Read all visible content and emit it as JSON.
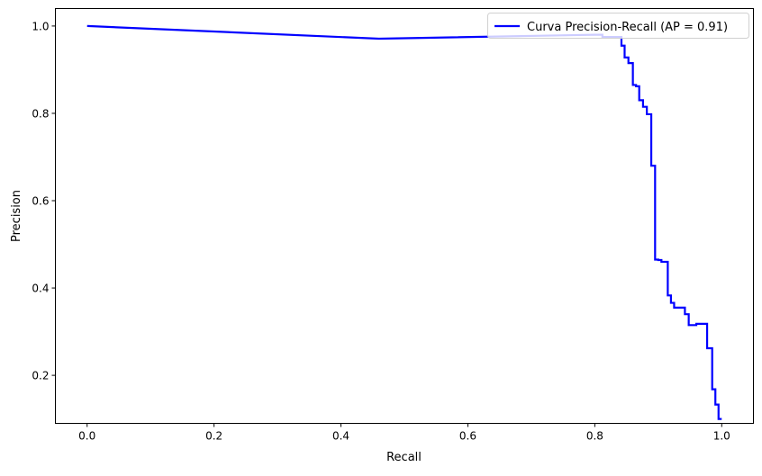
{
  "chart_data": {
    "type": "line",
    "title": "",
    "xlabel": "Recall",
    "ylabel": "Precision",
    "xlim": [
      -0.05,
      1.05
    ],
    "ylim": [
      0.09,
      1.04
    ],
    "xticks": [
      0.0,
      0.2,
      0.4,
      0.6,
      0.8,
      1.0
    ],
    "xtick_labels": [
      "0.0",
      "0.2",
      "0.4",
      "0.6",
      "0.8",
      "1.0"
    ],
    "yticks": [
      0.2,
      0.4,
      0.6,
      0.8,
      1.0
    ],
    "ytick_labels": [
      "0.2",
      "0.4",
      "0.6",
      "0.8",
      "1.0"
    ],
    "grid": false,
    "legend_position": "upper-right",
    "series": [
      {
        "name": "Curva Precision-Recall (AP = 0.91)",
        "color": "#0000ff",
        "x": [
          0.0,
          0.46,
          0.8,
          0.812,
          0.812,
          0.842,
          0.842,
          0.847,
          0.847,
          0.853,
          0.853,
          0.86,
          0.86,
          0.865,
          0.865,
          0.87,
          0.87,
          0.876,
          0.876,
          0.882,
          0.882,
          0.889,
          0.889,
          0.895,
          0.895,
          0.9,
          0.9,
          0.905,
          0.905,
          0.915,
          0.915,
          0.92,
          0.92,
          0.925,
          0.925,
          0.942,
          0.942,
          0.948,
          0.948,
          0.96,
          0.96,
          0.977,
          0.977,
          0.985,
          0.985,
          0.99,
          0.99,
          0.995,
          0.995,
          1.0,
          1.0
        ],
        "y": [
          1.0,
          0.971,
          0.98,
          0.98,
          0.975,
          0.975,
          0.955,
          0.955,
          0.928,
          0.928,
          0.915,
          0.915,
          0.865,
          0.865,
          0.862,
          0.862,
          0.83,
          0.83,
          0.815,
          0.815,
          0.798,
          0.798,
          0.68,
          0.68,
          0.465,
          0.465,
          0.464,
          0.464,
          0.46,
          0.46,
          0.383,
          0.383,
          0.366,
          0.366,
          0.355,
          0.355,
          0.34,
          0.34,
          0.315,
          0.315,
          0.318,
          0.318,
          0.262,
          0.262,
          0.168,
          0.168,
          0.133,
          0.133,
          0.1,
          0.1,
          0.1
        ]
      }
    ]
  }
}
